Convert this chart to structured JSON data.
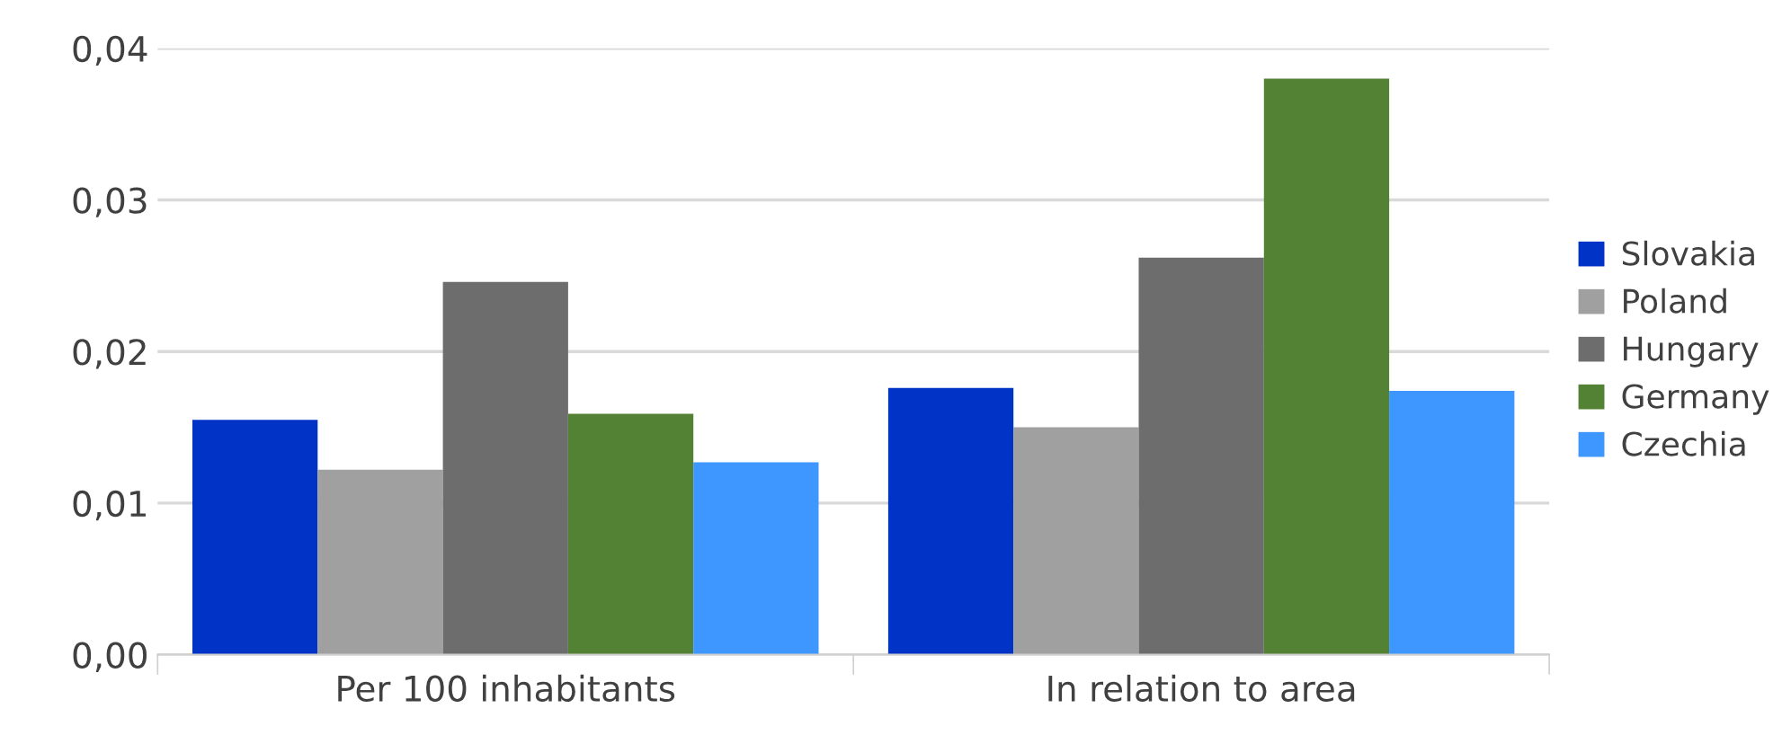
{
  "chart_data": {
    "type": "bar",
    "categories": [
      "Per 100 inhabitants",
      "In relation to area"
    ],
    "series": [
      {
        "name": "Slovakia",
        "color": "#0033c6",
        "values": [
          0.0155,
          0.0176
        ]
      },
      {
        "name": "Poland",
        "color": "#a0a0a0",
        "values": [
          0.0122,
          0.015
        ]
      },
      {
        "name": "Hungary",
        "color": "#6d6d6d",
        "values": [
          0.0246,
          0.0262
        ]
      },
      {
        "name": "Germany",
        "color": "#548235",
        "values": [
          0.0159,
          0.038
        ]
      },
      {
        "name": "Czechia",
        "color": "#3d97ff",
        "values": [
          0.0127,
          0.0174
        ]
      }
    ],
    "ylim": [
      0,
      0.04
    ],
    "yticks": [
      {
        "value": 0,
        "label": "0,00"
      },
      {
        "value": 0.01,
        "label": "0,01"
      },
      {
        "value": 0.02,
        "label": "0,02"
      },
      {
        "value": 0.03,
        "label": "0,03"
      },
      {
        "value": 0.04,
        "label": "0,04"
      }
    ],
    "grid": "y",
    "legend": "right"
  }
}
